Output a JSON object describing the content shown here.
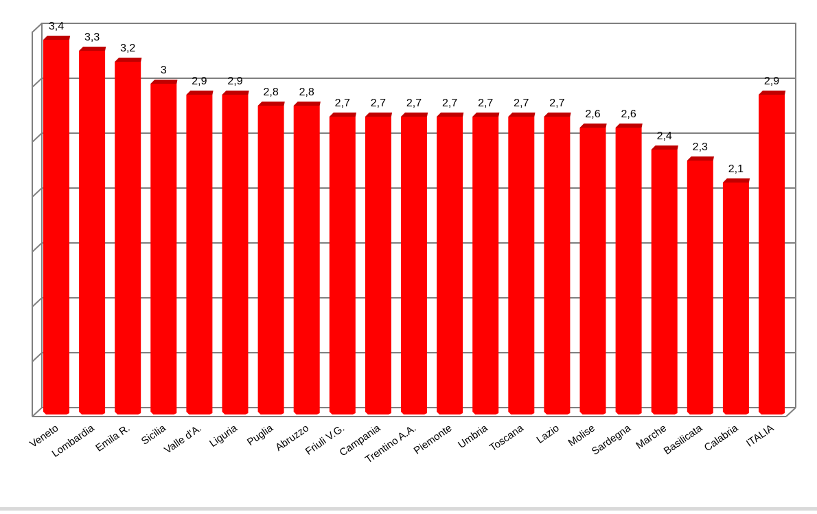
{
  "chart_data": {
    "type": "bar",
    "title": "",
    "xlabel": "",
    "ylabel": "",
    "ylim": [
      0,
      3.5
    ],
    "ytick_step": 0.5,
    "grid": true,
    "legend": "none",
    "bar_color": "#ff0000",
    "bar_top_color": "#c00000",
    "categories": [
      "Veneto",
      "Lombardia",
      "Emila R.",
      "Sicilia",
      "Valle d'A.",
      "Liguria",
      "Puglia",
      "Abruzzo",
      "Friuli V.G.",
      "Campania",
      "Trentino A.A.",
      "Piemonte",
      "Umbria",
      "Toscana",
      "Lazio",
      "Molise",
      "Sardegna",
      "Marche",
      "Basilicata",
      "Calabria",
      "ITALIA"
    ],
    "values": [
      3.4,
      3.3,
      3.2,
      3.0,
      2.9,
      2.9,
      2.8,
      2.8,
      2.7,
      2.7,
      2.7,
      2.7,
      2.7,
      2.7,
      2.7,
      2.6,
      2.6,
      2.4,
      2.3,
      2.1,
      2.9
    ],
    "value_labels": [
      "3,4",
      "3,3",
      "3,2",
      "3",
      "2,9",
      "2,9",
      "2,8",
      "2,8",
      "2,7",
      "2,7",
      "2,7",
      "2,7",
      "2,7",
      "2,7",
      "2,7",
      "2,6",
      "2,6",
      "2,4",
      "2,3",
      "2,1",
      "2,9"
    ]
  }
}
